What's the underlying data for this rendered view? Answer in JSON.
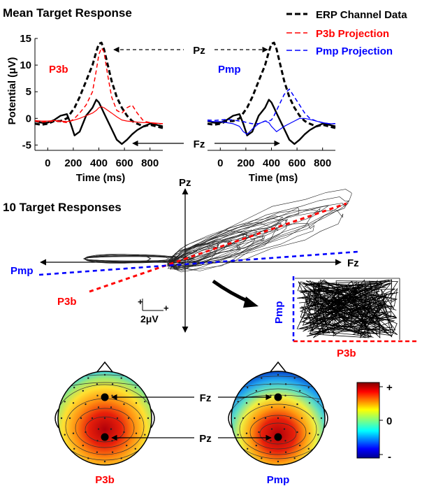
{
  "title": "Mean Target Response",
  "legend": {
    "erp": "ERP Channel Data",
    "p3b": "P3b Projection",
    "pmp": "Pmp Projection"
  },
  "labels": {
    "pz": "Pz",
    "fz": "Fz",
    "p3b": "P3b",
    "pmp": "Pmp",
    "ten_responses": "10 Target Responses",
    "scale": "2μV",
    "plus": "+",
    "zero": "0",
    "minus": "-"
  },
  "colors": {
    "erp": "#000000",
    "p3b": "#ff0000",
    "pmp": "#0000ff"
  },
  "chart_data": [
    {
      "type": "line",
      "panel_label": "P3b",
      "xlabel": "Time (ms)",
      "ylabel": "Potential (μV)",
      "xticks": [
        0,
        200,
        400,
        600,
        800
      ],
      "yticks": [
        -5,
        0,
        5,
        10,
        15
      ],
      "xlim": [
        -100,
        900
      ],
      "ylim": [
        -6,
        15
      ],
      "x": [
        -100,
        -50,
        0,
        50,
        100,
        150,
        180,
        210,
        250,
        300,
        350,
        380,
        400,
        420,
        440,
        470,
        500,
        540,
        580,
        620,
        660,
        700,
        750,
        800,
        850,
        900
      ],
      "series": [
        {
          "name": "ERP Channel Data",
          "role": "erp-pz",
          "values": [
            -1,
            -1.2,
            -1,
            -0.5,
            -0.5,
            0,
            1,
            2,
            4,
            7,
            10,
            12.5,
            14,
            14.2,
            13,
            10,
            7,
            4,
            2,
            0.5,
            -0.5,
            -1,
            -1.5,
            -1.2,
            -1.5,
            -1.8
          ]
        },
        {
          "name": "ERP Channel Data",
          "role": "erp-fz",
          "values": [
            -0.5,
            -0.8,
            -0.8,
            -0.3,
            0.5,
            0.8,
            -1,
            -3.2,
            -2.5,
            0.5,
            2,
            3.5,
            3,
            2,
            1,
            -0.5,
            -2,
            -4,
            -4.8,
            -4,
            -3,
            -2.2,
            -1.5,
            -1,
            -1.2,
            -1.5
          ]
        },
        {
          "name": "P3b Projection",
          "role": "proj-pz",
          "values": [
            -0.5,
            -0.7,
            -0.6,
            -0.5,
            -0.6,
            -0.8,
            -0.5,
            0,
            1,
            2.5,
            5,
            9,
            12,
            13.2,
            12.5,
            8,
            4,
            1.5,
            1,
            2,
            2.5,
            1,
            -0.5,
            -0.8,
            -1,
            -1
          ]
        },
        {
          "name": "P3b Projection",
          "role": "proj-fz",
          "values": [
            -0.4,
            -0.5,
            -0.5,
            -0.4,
            -0.5,
            -0.6,
            -0.5,
            -0.3,
            0,
            0.5,
            1,
            1.5,
            2,
            2.2,
            2,
            1.5,
            1,
            0.3,
            -0.3,
            -0.5,
            -0.6,
            -0.7,
            -0.8,
            -0.8,
            -0.9,
            -1
          ]
        }
      ]
    },
    {
      "type": "line",
      "panel_label": "Pmp",
      "xlabel": "Time (ms)",
      "xticks": [
        0,
        200,
        400,
        600,
        800
      ],
      "xlim": [
        -100,
        900
      ],
      "ylim": [
        -6,
        15
      ],
      "x": [
        -100,
        -50,
        0,
        50,
        100,
        150,
        180,
        210,
        250,
        300,
        350,
        380,
        400,
        420,
        440,
        470,
        500,
        540,
        580,
        620,
        660,
        700,
        750,
        800,
        850,
        900
      ],
      "series": [
        {
          "name": "ERP Channel Data",
          "role": "erp-pz",
          "values": [
            -1,
            -1.2,
            -1,
            -0.5,
            -0.5,
            0,
            1,
            2,
            4,
            7,
            10,
            12.5,
            14,
            14.2,
            13,
            10,
            7,
            4,
            2,
            0.5,
            -0.5,
            -1,
            -1.5,
            -1.2,
            -1.5,
            -1.8
          ]
        },
        {
          "name": "ERP Channel Data",
          "role": "erp-fz",
          "values": [
            -0.5,
            -0.8,
            -0.8,
            -0.3,
            0.5,
            0.8,
            -1,
            -3.2,
            -2.5,
            0.5,
            2,
            3.5,
            3,
            2,
            1,
            -0.5,
            -2,
            -4,
            -4.8,
            -4,
            -3,
            -2.2,
            -1.5,
            -1,
            -1.2,
            -1.5
          ]
        },
        {
          "name": "Pmp Projection",
          "role": "proj-pz",
          "values": [
            -0.3,
            -0.4,
            -0.3,
            -0.2,
            -0.3,
            -0.5,
            -0.6,
            -0.8,
            -1,
            -1,
            -0.5,
            -0.5,
            -0.3,
            0.5,
            1.5,
            3,
            4.5,
            5.5,
            4,
            2.5,
            1,
            0,
            -0.5,
            -0.8,
            -1,
            -1
          ]
        },
        {
          "name": "Pmp Projection",
          "role": "proj-fz",
          "values": [
            -0.5,
            -0.6,
            -0.6,
            -0.8,
            -1,
            -1.5,
            -2.5,
            -3,
            -2,
            -1,
            -0.5,
            -0.8,
            -1.5,
            -2,
            -2.5,
            -2,
            -1.5,
            -1,
            -0.5,
            0,
            0,
            -0.2,
            -0.5,
            -0.8,
            -1,
            -1
          ]
        }
      ]
    }
  ]
}
